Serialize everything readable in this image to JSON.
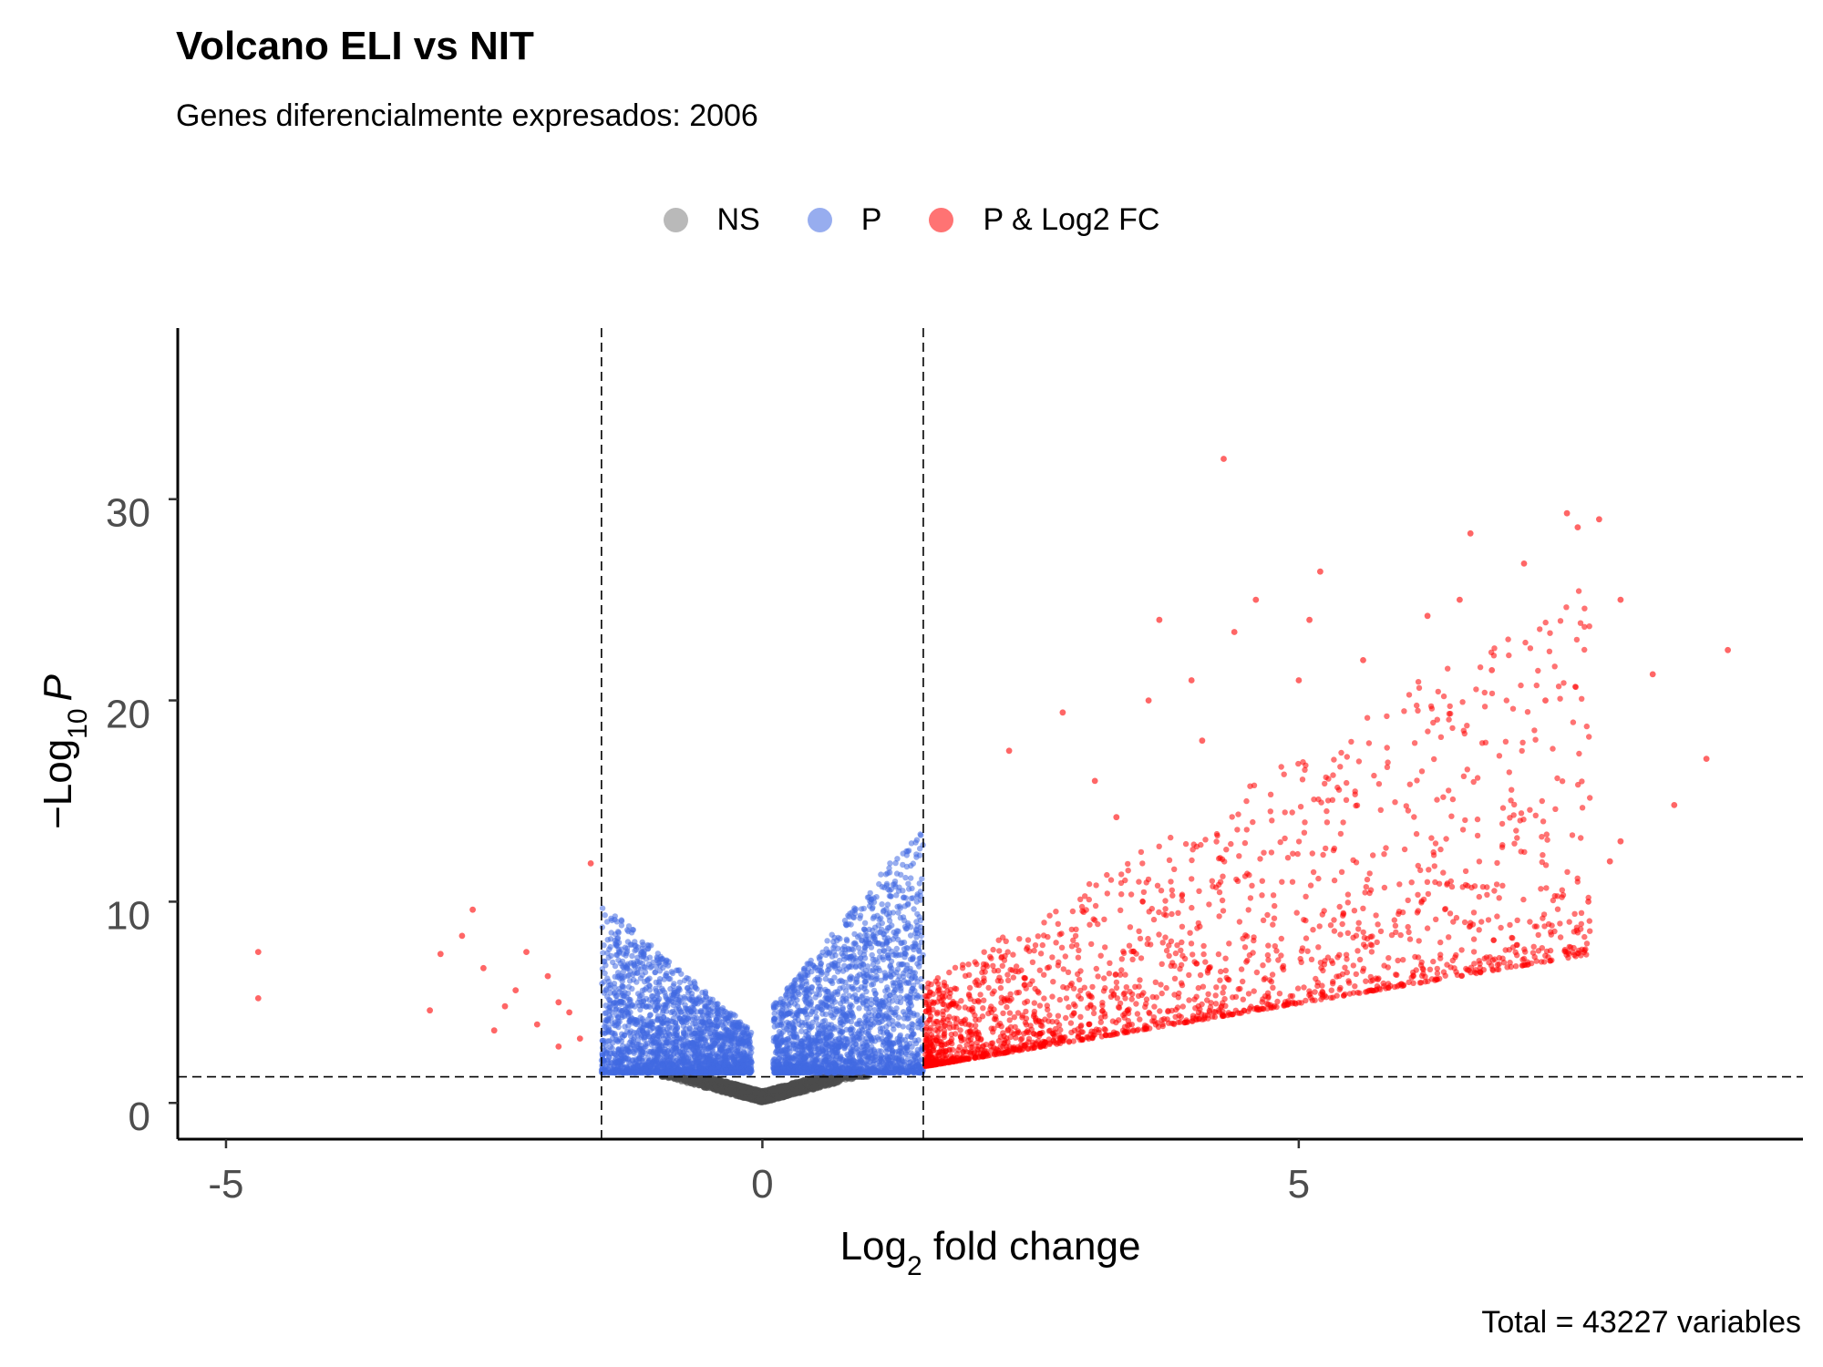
{
  "chart_data": {
    "type": "scatter",
    "title": "Volcano ELI vs NIT",
    "subtitle": "Genes diferencialmente expresados: 2006",
    "caption": "Total = 43227 variables",
    "xlabel": {
      "prefix": "Log",
      "sub": "2",
      "suffix": " fold change"
    },
    "ylabel": {
      "prefix": "−Log",
      "sub": "10",
      "suffix": "P"
    },
    "xlim": [
      -5.45,
      9.7
    ],
    "ylim": [
      -1.8,
      38.5
    ],
    "x_ticks": [
      {
        "value": -5,
        "label": "-5"
      },
      {
        "value": 0,
        "label": "0"
      },
      {
        "value": 5,
        "label": "5"
      }
    ],
    "y_ticks": [
      {
        "value": 0,
        "label": "0"
      },
      {
        "value": 10,
        "label": "10"
      },
      {
        "value": 20,
        "label": "20"
      },
      {
        "value": 30,
        "label": "30"
      }
    ],
    "cutoffs": {
      "log2fc": 1.5,
      "neg_log10_p": 1.3
    },
    "grid": false,
    "legend_position": "top",
    "legend": [
      {
        "name": "NS",
        "color": "#808080"
      },
      {
        "name": "P",
        "color": "#4169e1"
      },
      {
        "name": "P & Log2 FC",
        "color": "#ff0000"
      }
    ],
    "series": [
      {
        "name": "P & Log2 FC",
        "color": "#ff0000",
        "x": [
          -4.7,
          -4.7,
          -1.6,
          -2.7,
          -3.0,
          -3.1,
          -2.6,
          -2.2,
          -2.0,
          -1.9,
          -2.4,
          -2.5,
          -2.1,
          -1.8,
          -1.7,
          -2.3,
          -1.9,
          -2.8,
          4.3,
          7.5,
          7.6,
          7.8,
          6.6,
          7.1,
          5.2,
          4.6,
          5.1,
          5.0,
          8.0,
          9.0,
          3.7,
          3.6,
          4.0,
          4.4,
          4.1,
          5.6,
          6.2,
          6.5,
          6.8,
          7.3,
          8.3,
          8.8,
          7.9,
          2.8,
          2.3,
          3.1,
          3.3,
          8.5,
          8.0,
          7.7
        ],
        "y": [
          7.5,
          5.2,
          11.9,
          9.6,
          7.4,
          4.6,
          6.7,
          7.5,
          6.3,
          5.0,
          4.8,
          3.6,
          3.9,
          4.5,
          3.2,
          5.6,
          2.8,
          8.3,
          32.0,
          29.3,
          28.6,
          29.0,
          28.3,
          26.8,
          26.4,
          25.0,
          24.0,
          21.0,
          25.0,
          22.5,
          24.0,
          20.0,
          21.0,
          23.4,
          18.0,
          22.0,
          24.2,
          25.0,
          21.5,
          20.0,
          21.3,
          17.1,
          12.0,
          19.4,
          17.5,
          16.0,
          14.2,
          14.8,
          13.0,
          10.0
        ]
      }
    ],
    "generated_clouds": [
      {
        "name": "NS",
        "color": "#4d4d4d",
        "count": 2500,
        "seed": 17
      },
      {
        "name": "P",
        "color": "#4169e1",
        "count": 4200,
        "seed": 29
      },
      {
        "name": "P & Log2 FC",
        "color": "#ff0000",
        "count": 1900,
        "seed": 41
      }
    ]
  }
}
